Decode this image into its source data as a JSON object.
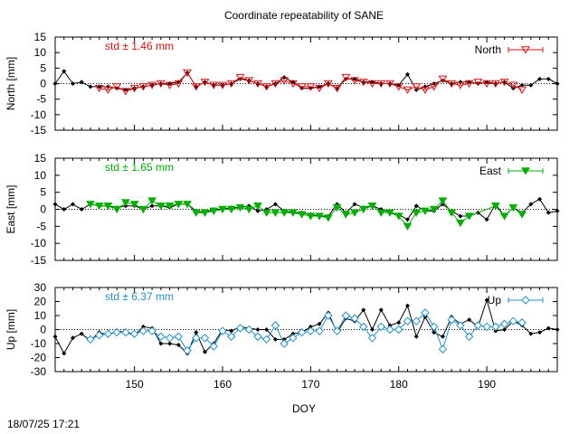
{
  "chart_data": {
    "title": "Coordinate repeatability of SANE",
    "xlabel": "DOY",
    "xlim": [
      141,
      198
    ],
    "xticks": [
      150,
      160,
      170,
      180,
      190
    ],
    "timestamp": "18/07/25 17:21",
    "colors": {
      "north": "#e01010",
      "east": "#00b000",
      "up": "#1e90d0",
      "black": "#000000"
    },
    "panels": [
      {
        "id": "north",
        "type": "line",
        "ylabel": "North [mm]",
        "ylim": [
          -15,
          15
        ],
        "yticks": [
          -15,
          -10,
          -5,
          0,
          5,
          10,
          15
        ],
        "std_label": "std ± 1.46 mm",
        "legend": "North",
        "marker": "triangle-open",
        "black_series": {
          "x": [
            141,
            142,
            143,
            144,
            145,
            146,
            147,
            148,
            149,
            150,
            151,
            152,
            153,
            154,
            155,
            156,
            157,
            158,
            159,
            160,
            161,
            162,
            163,
            164,
            165,
            166,
            167,
            168,
            169,
            170,
            171,
            172,
            173,
            174,
            175,
            176,
            177,
            178,
            179,
            180,
            181,
            182,
            183,
            184,
            185,
            186,
            187,
            188,
            189,
            190,
            191,
            192,
            193,
            194,
            195,
            196,
            197,
            198
          ],
          "y": [
            0,
            4,
            0,
            0.5,
            -1,
            -1,
            -1,
            -1.5,
            -2,
            -1.5,
            -1,
            -0.5,
            0,
            0,
            0.5,
            3.5,
            -1,
            0.5,
            -0.5,
            -0.5,
            0,
            1.5,
            1,
            0,
            -1,
            0,
            2,
            0.5,
            -1.5,
            -1.5,
            -1,
            0,
            -1.5,
            1.5,
            1.5,
            0.5,
            0.5,
            0,
            0,
            -0.5,
            3,
            -2,
            -1,
            0,
            1,
            0,
            0.5,
            0.5,
            0,
            0.5,
            0,
            0.5,
            -1.5,
            -0.5,
            -0.5,
            1.5,
            1.5,
            0
          ]
        },
        "colored_series": {
          "x": [
            146,
            147,
            148,
            149,
            150,
            151,
            152,
            153,
            154,
            155,
            156,
            157,
            158,
            159,
            160,
            161,
            162,
            163,
            164,
            165,
            166,
            167,
            168,
            169,
            170,
            171,
            172,
            173,
            174,
            175,
            176,
            177,
            178,
            179,
            180,
            181,
            182,
            183,
            184,
            185,
            186,
            187,
            188,
            189,
            190,
            191,
            192,
            193,
            194
          ],
          "y": [
            -1.5,
            -2,
            -1,
            -2.5,
            -1.5,
            -1,
            -0.5,
            0,
            -0.5,
            0,
            3.5,
            -1,
            0.5,
            -0.5,
            -0.5,
            0,
            2,
            1,
            0,
            -1,
            0,
            1,
            0,
            -1,
            -1,
            -1.5,
            0,
            -1.5,
            2,
            1,
            0.5,
            0,
            0,
            0,
            -1,
            -2,
            -1,
            -2,
            -1,
            1.5,
            0,
            -0.5,
            0,
            0.5,
            0,
            0,
            0.5,
            -0.5,
            -2
          ]
        }
      },
      {
        "id": "east",
        "type": "line",
        "ylabel": "East [mm]",
        "ylim": [
          -15,
          15
        ],
        "yticks": [
          -15,
          -10,
          -5,
          0,
          5,
          10,
          15
        ],
        "std_label": "std ± 1.65 mm",
        "legend": "East",
        "marker": "triangle-filled",
        "black_series": {
          "x": [
            141,
            142,
            143,
            144,
            145,
            146,
            147,
            148,
            149,
            150,
            151,
            152,
            153,
            154,
            155,
            156,
            157,
            158,
            159,
            160,
            161,
            162,
            163,
            164,
            165,
            166,
            167,
            168,
            169,
            170,
            171,
            172,
            173,
            174,
            175,
            176,
            177,
            178,
            179,
            180,
            181,
            182,
            183,
            184,
            185,
            186,
            187,
            188,
            189,
            190,
            191,
            192,
            193,
            194,
            195,
            196,
            197,
            198
          ],
          "y": [
            1.5,
            0,
            1.5,
            0,
            1.5,
            1,
            1,
            0.5,
            1,
            1,
            0,
            1,
            1,
            0.5,
            1.5,
            1.5,
            -0.5,
            -1,
            0,
            0,
            0.5,
            0.5,
            1,
            -0.5,
            0,
            1.5,
            -0.5,
            -1,
            -1,
            -1.5,
            -2,
            -2,
            1.5,
            -1,
            1.5,
            0.5,
            1,
            0,
            -1,
            -1.5,
            -3,
            1,
            -0.5,
            -0.5,
            1.5,
            -0.5,
            -2,
            -2,
            -1,
            -3,
            1.5,
            -2,
            0.5,
            -1,
            1.5,
            3,
            -1,
            -0.5
          ]
        },
        "colored_series": {
          "x": [
            145,
            146,
            147,
            148,
            149,
            150,
            151,
            152,
            153,
            154,
            155,
            156,
            157,
            158,
            159,
            160,
            161,
            162,
            163,
            164,
            165,
            166,
            167,
            168,
            169,
            170,
            171,
            172,
            173,
            174,
            175,
            176,
            177,
            178,
            179,
            180,
            181,
            182,
            183,
            184,
            185,
            186,
            187,
            188,
            191,
            192,
            193,
            194
          ],
          "y": [
            1.5,
            1,
            1,
            0,
            2,
            1.5,
            0,
            2.5,
            1,
            1,
            1.5,
            1.5,
            -1,
            -1,
            -0.5,
            0,
            0,
            0.5,
            0,
            1,
            -1,
            -1,
            -1,
            -1,
            -1.5,
            -2,
            -2,
            -2.5,
            0.5,
            -1.5,
            -1,
            0,
            1,
            -1,
            -1,
            -2,
            -5,
            -1,
            -0.5,
            0,
            2.5,
            -1,
            -4,
            -2,
            1,
            -2,
            0.5,
            -1.5
          ]
        }
      },
      {
        "id": "up",
        "type": "line",
        "ylabel": "Up [mm]",
        "ylim": [
          -30,
          30
        ],
        "yticks": [
          -30,
          -20,
          -10,
          0,
          10,
          20,
          30
        ],
        "std_label": "std ± 6.37 mm",
        "legend": "Up",
        "marker": "diamond-open",
        "black_series": {
          "x": [
            141,
            142,
            143,
            144,
            145,
            146,
            147,
            148,
            149,
            150,
            151,
            152,
            153,
            154,
            155,
            156,
            157,
            158,
            159,
            160,
            161,
            162,
            163,
            164,
            165,
            166,
            167,
            168,
            169,
            170,
            171,
            172,
            173,
            174,
            175,
            176,
            177,
            178,
            179,
            180,
            181,
            182,
            183,
            184,
            185,
            186,
            187,
            188,
            189,
            190,
            191,
            192,
            193,
            194,
            195,
            196,
            197,
            198
          ],
          "y": [
            -5,
            -17,
            -6,
            -3,
            -8,
            -2,
            -4,
            -1,
            -2,
            -4,
            2,
            1,
            -10,
            -10,
            -11,
            -17,
            -2,
            -16,
            -10,
            0,
            -1,
            2,
            1,
            0,
            0,
            -7,
            -7,
            -3,
            -2,
            2,
            4,
            12,
            -2,
            8,
            6,
            14,
            0,
            14,
            3,
            5,
            17,
            -5,
            9,
            -2,
            -5,
            9,
            4,
            7,
            2,
            21,
            -1,
            0,
            6,
            3,
            -3,
            -2,
            1,
            0
          ]
        },
        "colored_series": {
          "x": [
            145,
            146,
            147,
            148,
            149,
            150,
            151,
            152,
            153,
            154,
            155,
            156,
            157,
            158,
            159,
            160,
            161,
            162,
            163,
            164,
            165,
            166,
            167,
            168,
            169,
            170,
            171,
            172,
            173,
            174,
            175,
            176,
            177,
            178,
            179,
            180,
            181,
            182,
            183,
            184,
            185,
            186,
            187,
            188,
            189,
            190,
            191,
            192,
            193,
            194
          ],
          "y": [
            -7,
            -4,
            -3,
            -2,
            -2,
            -3,
            -1,
            -1,
            -5,
            -6,
            -5,
            -15,
            -6,
            -6,
            -12,
            -1,
            -5,
            1,
            0,
            -5,
            -7,
            3,
            -10,
            -6,
            -2,
            -1,
            -1,
            10,
            -1,
            10,
            8,
            2,
            -6,
            2,
            0,
            0,
            6,
            6,
            12,
            2,
            -14,
            7,
            3,
            -5,
            3,
            2,
            2,
            4,
            6,
            5
          ]
        }
      }
    ]
  }
}
